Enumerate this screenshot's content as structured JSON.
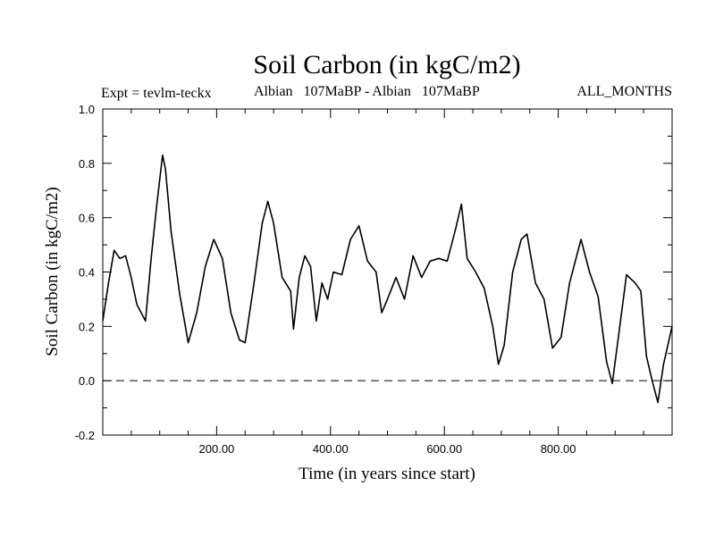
{
  "chart_data": {
    "type": "line",
    "title": "Soil Carbon (in kgC/m2)",
    "subtitle_left": "Expt = tevlm-teckx",
    "subtitle_center": "Albian   107MaBP - Albian   107MaBP",
    "subtitle_right": "ALL_MONTHS",
    "xlabel": "Time (in years since start)",
    "ylabel": "Soil Carbon (in kgC/m2)",
    "xlim": [
      0,
      1000
    ],
    "ylim": [
      -0.2,
      1.0
    ],
    "xticks": [
      200,
      400,
      600,
      800
    ],
    "xtick_labels": [
      "200.00",
      "400.00",
      "600.00",
      "800.00"
    ],
    "yticks": [
      -0.2,
      0.0,
      0.2,
      0.4,
      0.6,
      0.8,
      1.0
    ],
    "ytick_labels": [
      "-0.2",
      "0.0",
      "0.2",
      "0.4",
      "0.6",
      "0.8",
      "1.0"
    ],
    "reference_line": {
      "y": 0.0,
      "style": "dashed"
    },
    "series": [
      {
        "name": "Soil Carbon",
        "color": "#000000",
        "x": [
          0,
          10,
          20,
          30,
          40,
          50,
          60,
          75,
          85,
          95,
          105,
          110,
          120,
          135,
          150,
          165,
          180,
          195,
          210,
          225,
          240,
          250,
          265,
          280,
          290,
          300,
          315,
          330,
          335,
          345,
          355,
          365,
          375,
          385,
          395,
          405,
          420,
          435,
          450,
          465,
          480,
          490,
          500,
          515,
          530,
          545,
          560,
          575,
          590,
          605,
          620,
          630,
          640,
          655,
          670,
          685,
          695,
          705,
          720,
          735,
          745,
          760,
          775,
          790,
          805,
          820,
          840,
          855,
          870,
          885,
          895,
          905,
          920,
          935,
          945,
          955,
          965,
          975,
          985,
          1000
        ],
        "y": [
          0.22,
          0.36,
          0.48,
          0.45,
          0.46,
          0.38,
          0.28,
          0.22,
          0.45,
          0.65,
          0.83,
          0.78,
          0.55,
          0.32,
          0.14,
          0.25,
          0.42,
          0.52,
          0.45,
          0.25,
          0.15,
          0.14,
          0.35,
          0.58,
          0.66,
          0.58,
          0.38,
          0.33,
          0.19,
          0.38,
          0.46,
          0.42,
          0.22,
          0.36,
          0.3,
          0.4,
          0.39,
          0.52,
          0.57,
          0.44,
          0.4,
          0.25,
          0.3,
          0.38,
          0.3,
          0.46,
          0.38,
          0.44,
          0.45,
          0.44,
          0.56,
          0.65,
          0.45,
          0.4,
          0.34,
          0.2,
          0.06,
          0.13,
          0.4,
          0.52,
          0.54,
          0.36,
          0.3,
          0.12,
          0.16,
          0.36,
          0.52,
          0.4,
          0.31,
          0.07,
          -0.01,
          0.15,
          0.39,
          0.36,
          0.33,
          0.09,
          0.0,
          -0.08,
          0.06,
          0.2
        ]
      }
    ]
  }
}
